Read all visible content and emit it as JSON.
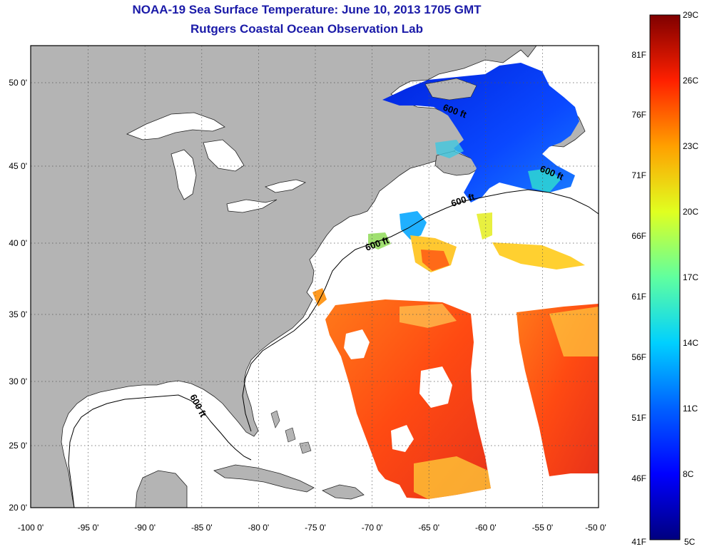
{
  "header": {
    "title": "NOAA-19 Sea Surface Temperature:  June 10, 2013 1705 GMT",
    "subtitle": "Rutgers Coastal Ocean Observation Lab"
  },
  "map": {
    "lon_labels": [
      "-100 0'",
      "-95 0'",
      "-90 0'",
      "-85 0'",
      "-80 0'",
      "-75 0'",
      "-70 0'",
      "-65 0'",
      "-60 0'",
      "-55 0'",
      "-50 0'"
    ],
    "lat_labels": [
      "50 0'",
      "45 0'",
      "40 0'",
      "35 0'",
      "30 0'",
      "25 0'",
      "20 0'"
    ],
    "lon_range": [
      -100,
      -50
    ],
    "lat_range": [
      20,
      52
    ],
    "isobath_labels": [
      "600 ft",
      "600 ft",
      "600 ft",
      "600 ft",
      "600 ft"
    ],
    "colors": {
      "land": "#b4b4b4",
      "no_data": "#ffffff"
    }
  },
  "colorbar": {
    "celsius_labels": [
      "29C",
      "26C",
      "23C",
      "20C",
      "17C",
      "14C",
      "11C",
      "8C",
      "5C"
    ],
    "fahrenheit_labels": [
      "81F",
      "76F",
      "71F",
      "66F",
      "61F",
      "56F",
      "51F",
      "46F",
      "41F"
    ],
    "range_c": [
      5,
      29
    ],
    "gradient": [
      "#00007f",
      "#0000ff",
      "#007fff",
      "#00ffff",
      "#7fff7f",
      "#ffff00",
      "#ff7f00",
      "#ff0000",
      "#7f0000"
    ]
  }
}
